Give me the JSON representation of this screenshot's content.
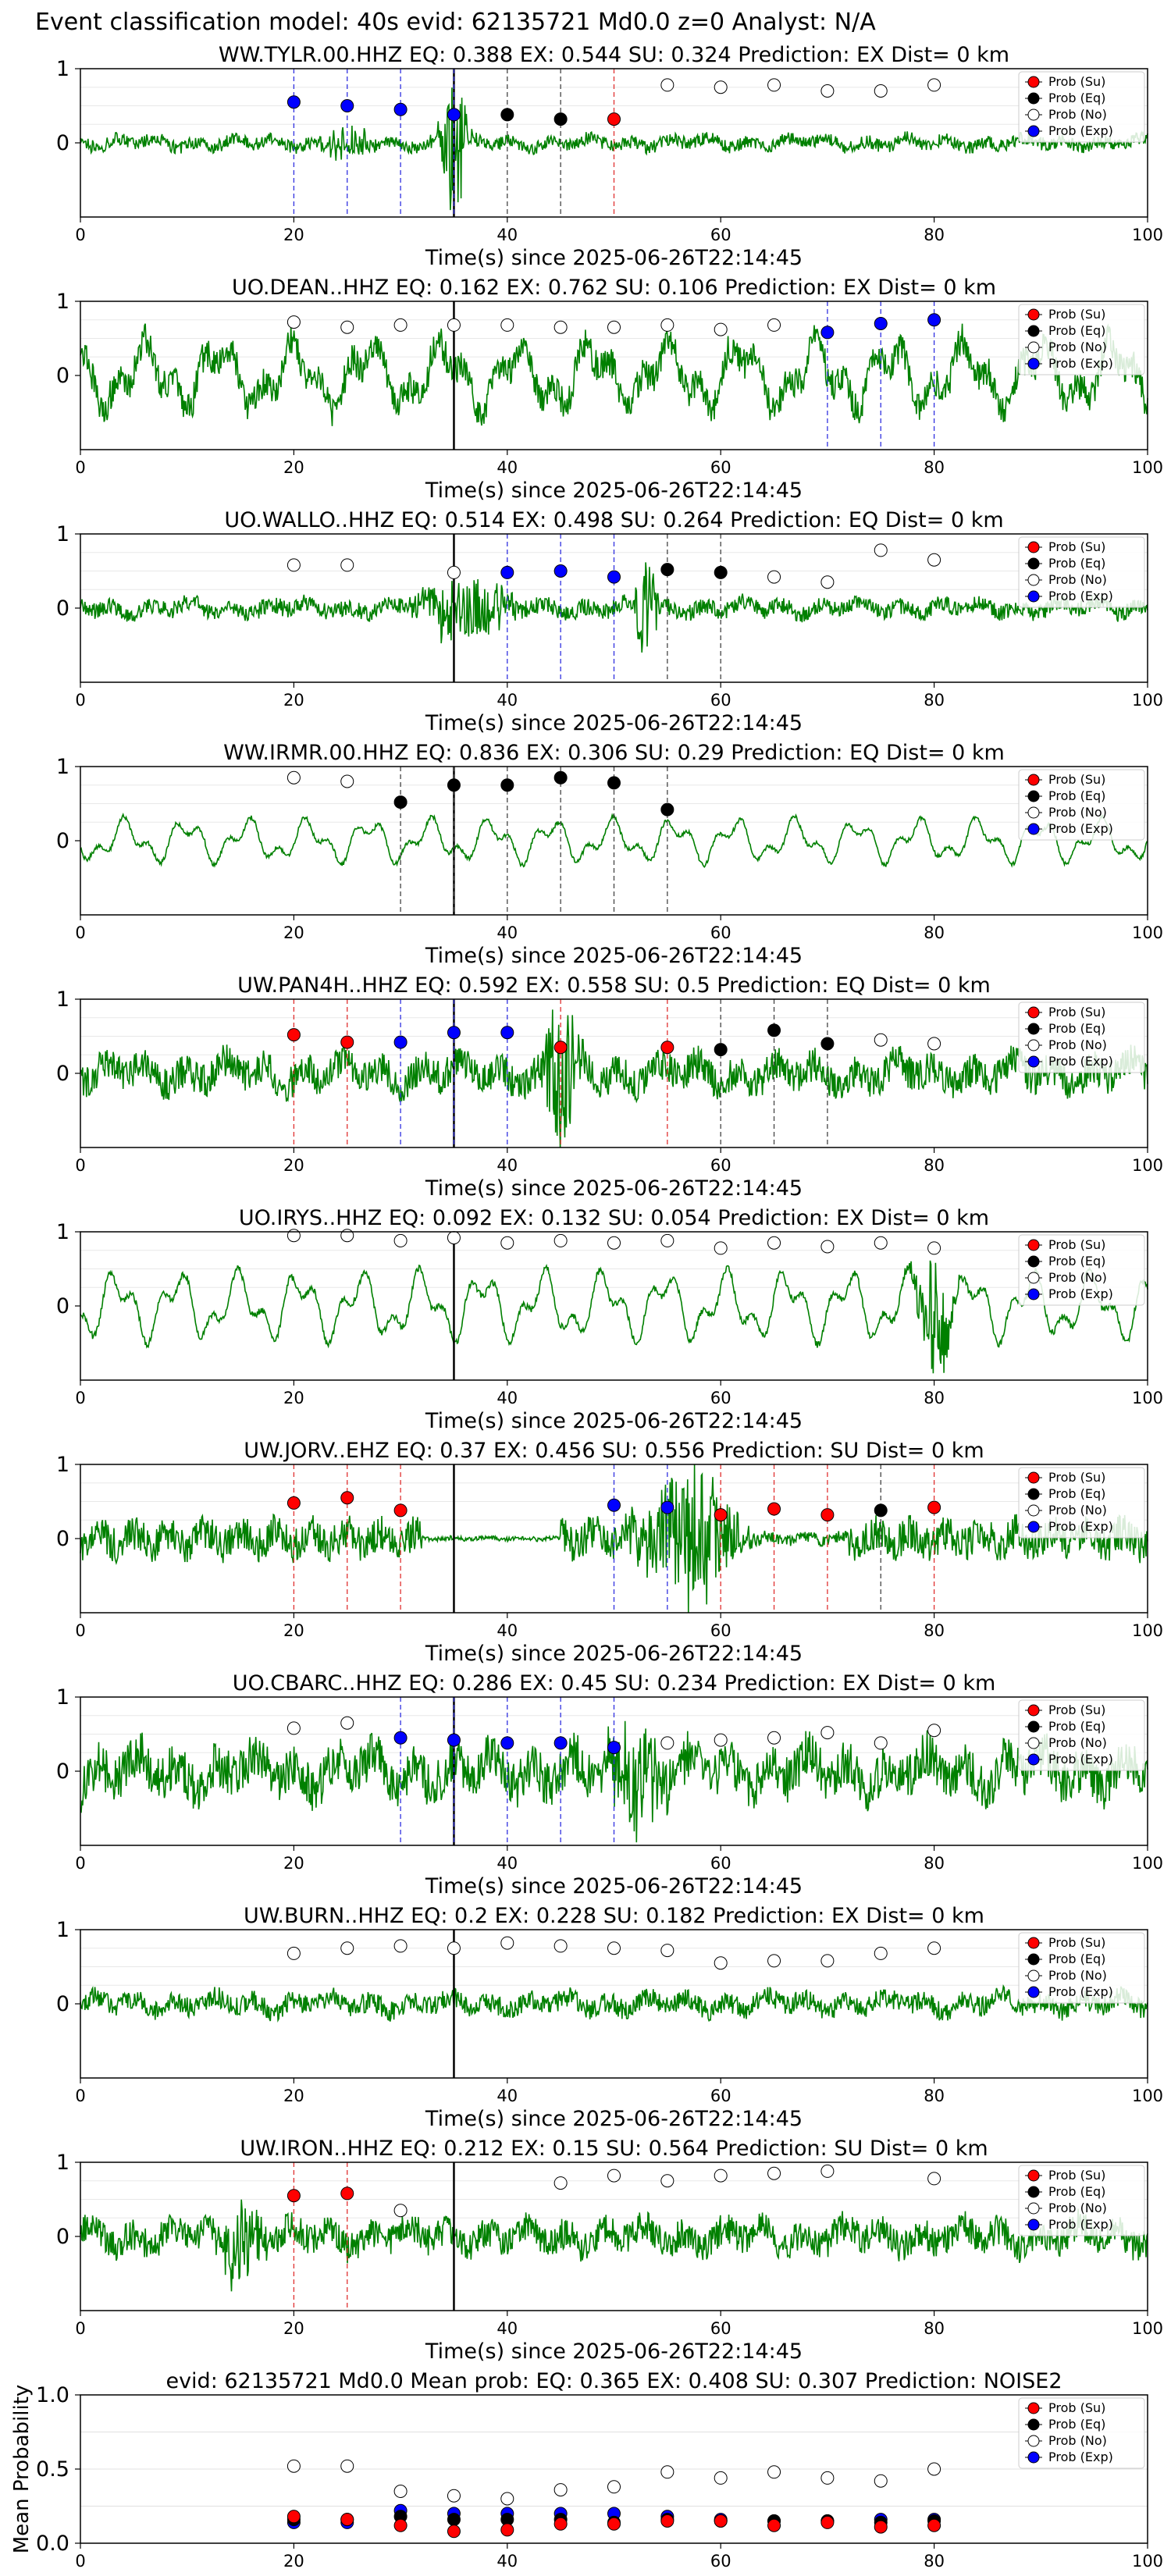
{
  "figure_title": "Event classification model: 40s evid: 62135721 Md0.0 z=0 Analyst: N/A",
  "legend_labels": [
    "Prob (Su)",
    "Prob (Eq)",
    "Prob (No)",
    "Prob (Exp)"
  ],
  "colors": {
    "trace": "#008000",
    "su": "#ff0000",
    "eq": "#000000",
    "no": "#ffffff",
    "exp": "#0000ff",
    "pick_line": "#000000"
  },
  "chart_data": [
    {
      "type": "line",
      "title": "WW.TYLR.00.HHZ   EQ: 0.388  EX: 0.544  SU: 0.324   Prediction: EX    Dist= 0 km",
      "xlabel": "Time(s) since 2025-06-26T22:14:45",
      "xlim": [
        0,
        100
      ],
      "ylim": [
        -1,
        1
      ],
      "xticks": [
        "0",
        "20",
        "40",
        "60",
        "80",
        "100"
      ],
      "yticks": [
        "0",
        "1"
      ],
      "pick_time": 35,
      "trace": {
        "style": "noisy",
        "amplitude": 0.12,
        "bursts": [
          {
            "t": 35,
            "amp": 1.0,
            "width": 1.2
          },
          {
            "t": 25,
            "amp": 0.2,
            "width": 2
          }
        ]
      },
      "windows": [
        {
          "t": 20,
          "class": "exp",
          "prob": 0.55
        },
        {
          "t": 25,
          "class": "exp",
          "prob": 0.5
        },
        {
          "t": 30,
          "class": "exp",
          "prob": 0.45
        },
        {
          "t": 35,
          "class": "exp",
          "prob": 0.38
        },
        {
          "t": 40,
          "class": "eq",
          "prob": 0.38
        },
        {
          "t": 45,
          "class": "eq",
          "prob": 0.32
        },
        {
          "t": 50,
          "class": "su",
          "prob": 0.32
        },
        {
          "t": 55,
          "class": "no",
          "prob": 0.78
        },
        {
          "t": 60,
          "class": "no",
          "prob": 0.75
        },
        {
          "t": 65,
          "class": "no",
          "prob": 0.78
        },
        {
          "t": 70,
          "class": "no",
          "prob": 0.7
        },
        {
          "t": 75,
          "class": "no",
          "prob": 0.7
        },
        {
          "t": 80,
          "class": "no",
          "prob": 0.78
        }
      ]
    },
    {
      "type": "line",
      "title": "UO.DEAN..HHZ   EQ: 0.162  EX: 0.762  SU: 0.106   Prediction: EX    Dist= 0 km",
      "xlabel": "Time(s) since 2025-06-26T22:14:45",
      "xlim": [
        0,
        100
      ],
      "ylim": [
        -1,
        1
      ],
      "xticks": [
        "0",
        "20",
        "40",
        "60",
        "80",
        "100"
      ],
      "yticks": [
        "0",
        "1"
      ],
      "pick_time": 35,
      "trace": {
        "style": "wavy",
        "amplitude": 0.6,
        "bursts": []
      },
      "windows": [
        {
          "t": 20,
          "class": "no",
          "prob": 0.72
        },
        {
          "t": 25,
          "class": "no",
          "prob": 0.65
        },
        {
          "t": 30,
          "class": "no",
          "prob": 0.68
        },
        {
          "t": 35,
          "class": "no",
          "prob": 0.68
        },
        {
          "t": 40,
          "class": "no",
          "prob": 0.68
        },
        {
          "t": 45,
          "class": "no",
          "prob": 0.65
        },
        {
          "t": 50,
          "class": "no",
          "prob": 0.65
        },
        {
          "t": 55,
          "class": "no",
          "prob": 0.68
        },
        {
          "t": 60,
          "class": "no",
          "prob": 0.62
        },
        {
          "t": 65,
          "class": "no",
          "prob": 0.68
        },
        {
          "t": 70,
          "class": "exp",
          "prob": 0.58
        },
        {
          "t": 75,
          "class": "exp",
          "prob": 0.7
        },
        {
          "t": 80,
          "class": "exp",
          "prob": 0.75
        }
      ]
    },
    {
      "type": "line",
      "title": "UO.WALLO..HHZ   EQ: 0.514  EX: 0.498  SU: 0.264   Prediction: EQ    Dist= 0 km",
      "xlabel": "Time(s) since 2025-06-26T22:14:45",
      "xlim": [
        0,
        100
      ],
      "ylim": [
        -1,
        1
      ],
      "xticks": [
        "0",
        "20",
        "40",
        "60",
        "80",
        "100"
      ],
      "yticks": [
        "0",
        "1"
      ],
      "pick_time": 35,
      "trace": {
        "style": "noisy",
        "amplitude": 0.15,
        "bursts": [
          {
            "t": 36,
            "amp": 0.45,
            "width": 4
          },
          {
            "t": 53,
            "amp": 0.7,
            "width": 1
          }
        ]
      },
      "windows": [
        {
          "t": 20,
          "class": "no",
          "prob": 0.58
        },
        {
          "t": 25,
          "class": "no",
          "prob": 0.58
        },
        {
          "t": 35,
          "class": "no",
          "prob": 0.48
        },
        {
          "t": 40,
          "class": "exp",
          "prob": 0.48
        },
        {
          "t": 45,
          "class": "exp",
          "prob": 0.5
        },
        {
          "t": 50,
          "class": "exp",
          "prob": 0.42
        },
        {
          "t": 55,
          "class": "eq",
          "prob": 0.52
        },
        {
          "t": 60,
          "class": "eq",
          "prob": 0.48
        },
        {
          "t": 65,
          "class": "no",
          "prob": 0.42
        },
        {
          "t": 70,
          "class": "no",
          "prob": 0.35
        },
        {
          "t": 75,
          "class": "no",
          "prob": 0.78
        },
        {
          "t": 80,
          "class": "no",
          "prob": 0.65
        }
      ]
    },
    {
      "type": "line",
      "title": "WW.IRMR.00.HHZ   EQ: 0.836  EX: 0.306  SU: 0.29   Prediction: EQ    Dist= 0 km",
      "xlabel": "Time(s) since 2025-06-26T22:14:45",
      "xlim": [
        0,
        100
      ],
      "ylim": [
        -1,
        1
      ],
      "xticks": [
        "0",
        "20",
        "40",
        "60",
        "80",
        "100"
      ],
      "yticks": [
        "0",
        "1"
      ],
      "pick_time": 35,
      "trace": {
        "style": "smooth",
        "amplitude": 0.35,
        "bursts": []
      },
      "windows": [
        {
          "t": 20,
          "class": "no",
          "prob": 0.85
        },
        {
          "t": 25,
          "class": "no",
          "prob": 0.8
        },
        {
          "t": 30,
          "class": "eq",
          "prob": 0.52
        },
        {
          "t": 35,
          "class": "eq",
          "prob": 0.75
        },
        {
          "t": 40,
          "class": "eq",
          "prob": 0.75
        },
        {
          "t": 45,
          "class": "eq",
          "prob": 0.85
        },
        {
          "t": 50,
          "class": "eq",
          "prob": 0.78
        },
        {
          "t": 55,
          "class": "eq",
          "prob": 0.42
        }
      ]
    },
    {
      "type": "line",
      "title": "UW.PAN4H..HHZ   EQ: 0.592  EX: 0.558  SU: 0.5   Prediction: EQ    Dist= 0 km",
      "xlabel": "Time(s) since 2025-06-26T22:14:45",
      "xlim": [
        0,
        100
      ],
      "ylim": [
        -1,
        1
      ],
      "xticks": [
        "0",
        "20",
        "40",
        "60",
        "80",
        "100"
      ],
      "yticks": [
        "0",
        "1"
      ],
      "pick_time": 35,
      "trace": {
        "style": "noisy",
        "amplitude": 0.3,
        "bursts": [
          {
            "t": 45,
            "amp": 1.0,
            "width": 1.5
          }
        ]
      },
      "windows": [
        {
          "t": 20,
          "class": "su",
          "prob": 0.52
        },
        {
          "t": 25,
          "class": "su",
          "prob": 0.42
        },
        {
          "t": 30,
          "class": "exp",
          "prob": 0.42
        },
        {
          "t": 35,
          "class": "exp",
          "prob": 0.55
        },
        {
          "t": 40,
          "class": "exp",
          "prob": 0.55
        },
        {
          "t": 45,
          "class": "su",
          "prob": 0.35
        },
        {
          "t": 55,
          "class": "su",
          "prob": 0.35
        },
        {
          "t": 60,
          "class": "eq",
          "prob": 0.32
        },
        {
          "t": 65,
          "class": "eq",
          "prob": 0.58
        },
        {
          "t": 70,
          "class": "eq",
          "prob": 0.4
        },
        {
          "t": 75,
          "class": "no",
          "prob": 0.45
        },
        {
          "t": 80,
          "class": "no",
          "prob": 0.4
        }
      ]
    },
    {
      "type": "line",
      "title": "UO.IRYS..HHZ   EQ: 0.092  EX: 0.132  SU: 0.054   Prediction: EX    Dist= 0 km",
      "xlabel": "Time(s) since 2025-06-26T22:14:45",
      "xlim": [
        0,
        100
      ],
      "ylim": [
        -1,
        1
      ],
      "xticks": [
        "0",
        "20",
        "40",
        "60",
        "80",
        "100"
      ],
      "yticks": [
        "0",
        "1"
      ],
      "pick_time": 35,
      "trace": {
        "style": "smooth",
        "amplitude": 0.55,
        "bursts": [
          {
            "t": 80,
            "amp": 0.9,
            "width": 1.5
          }
        ]
      },
      "windows": [
        {
          "t": 20,
          "class": "no",
          "prob": 0.95
        },
        {
          "t": 25,
          "class": "no",
          "prob": 0.95
        },
        {
          "t": 30,
          "class": "no",
          "prob": 0.88
        },
        {
          "t": 35,
          "class": "no",
          "prob": 0.92
        },
        {
          "t": 40,
          "class": "no",
          "prob": 0.85
        },
        {
          "t": 45,
          "class": "no",
          "prob": 0.88
        },
        {
          "t": 50,
          "class": "no",
          "prob": 0.85
        },
        {
          "t": 55,
          "class": "no",
          "prob": 0.88
        },
        {
          "t": 60,
          "class": "no",
          "prob": 0.78
        },
        {
          "t": 65,
          "class": "no",
          "prob": 0.85
        },
        {
          "t": 70,
          "class": "no",
          "prob": 0.8
        },
        {
          "t": 75,
          "class": "no",
          "prob": 0.85
        },
        {
          "t": 80,
          "class": "no",
          "prob": 0.78
        }
      ]
    },
    {
      "type": "line",
      "title": "UW.JORV..EHZ   EQ: 0.37  EX: 0.456  SU: 0.556   Prediction: SU    Dist= 0 km",
      "xlabel": "Time(s) since 2025-06-26T22:14:45",
      "xlim": [
        0,
        100
      ],
      "ylim": [
        -1,
        1
      ],
      "xticks": [
        "0",
        "20",
        "40",
        "60",
        "80",
        "100"
      ],
      "yticks": [
        "0",
        "1"
      ],
      "pick_time": 35,
      "trace": {
        "style": "burst-quiet",
        "amplitude": 0.3,
        "bursts": [
          {
            "t": 57,
            "amp": 1.0,
            "width": 4
          }
        ]
      },
      "windows": [
        {
          "t": 20,
          "class": "su",
          "prob": 0.48
        },
        {
          "t": 25,
          "class": "su",
          "prob": 0.55
        },
        {
          "t": 30,
          "class": "su",
          "prob": 0.38
        },
        {
          "t": 50,
          "class": "exp",
          "prob": 0.45
        },
        {
          "t": 55,
          "class": "exp",
          "prob": 0.42
        },
        {
          "t": 60,
          "class": "su",
          "prob": 0.32
        },
        {
          "t": 65,
          "class": "su",
          "prob": 0.4
        },
        {
          "t": 70,
          "class": "su",
          "prob": 0.32
        },
        {
          "t": 75,
          "class": "eq",
          "prob": 0.38
        },
        {
          "t": 80,
          "class": "su",
          "prob": 0.42
        }
      ]
    },
    {
      "type": "line",
      "title": "UO.CBARC..HHZ   EQ: 0.286  EX: 0.45  SU: 0.234   Prediction: EX    Dist= 0 km",
      "xlabel": "Time(s) since 2025-06-26T22:14:45",
      "xlim": [
        0,
        100
      ],
      "ylim": [
        -1,
        1
      ],
      "xticks": [
        "0",
        "20",
        "40",
        "60",
        "80",
        "100"
      ],
      "yticks": [
        "0",
        "1"
      ],
      "pick_time": 35,
      "trace": {
        "style": "noisy",
        "amplitude": 0.42,
        "bursts": [
          {
            "t": 52,
            "amp": 0.7,
            "width": 3
          }
        ]
      },
      "windows": [
        {
          "t": 20,
          "class": "no",
          "prob": 0.58
        },
        {
          "t": 25,
          "class": "no",
          "prob": 0.65
        },
        {
          "t": 30,
          "class": "exp",
          "prob": 0.45
        },
        {
          "t": 35,
          "class": "exp",
          "prob": 0.42
        },
        {
          "t": 40,
          "class": "exp",
          "prob": 0.38
        },
        {
          "t": 45,
          "class": "exp",
          "prob": 0.38
        },
        {
          "t": 50,
          "class": "exp",
          "prob": 0.32
        },
        {
          "t": 55,
          "class": "no",
          "prob": 0.38
        },
        {
          "t": 60,
          "class": "no",
          "prob": 0.42
        },
        {
          "t": 65,
          "class": "no",
          "prob": 0.45
        },
        {
          "t": 70,
          "class": "no",
          "prob": 0.52
        },
        {
          "t": 75,
          "class": "no",
          "prob": 0.38
        },
        {
          "t": 80,
          "class": "no",
          "prob": 0.55
        }
      ]
    },
    {
      "type": "line",
      "title": "UW.BURN..HHZ   EQ: 0.2  EX: 0.228  SU: 0.182   Prediction: EX    Dist= 0 km",
      "xlabel": "Time(s) since 2025-06-26T22:14:45",
      "xlim": [
        0,
        100
      ],
      "ylim": [
        -1,
        1
      ],
      "xticks": [
        "0",
        "20",
        "40",
        "60",
        "80",
        "100"
      ],
      "yticks": [
        "0",
        "1"
      ],
      "pick_time": 35,
      "trace": {
        "style": "noisy",
        "amplitude": 0.18,
        "bursts": []
      },
      "windows": [
        {
          "t": 20,
          "class": "no",
          "prob": 0.68
        },
        {
          "t": 25,
          "class": "no",
          "prob": 0.75
        },
        {
          "t": 30,
          "class": "no",
          "prob": 0.78
        },
        {
          "t": 35,
          "class": "no",
          "prob": 0.75
        },
        {
          "t": 40,
          "class": "no",
          "prob": 0.82
        },
        {
          "t": 45,
          "class": "no",
          "prob": 0.78
        },
        {
          "t": 50,
          "class": "no",
          "prob": 0.75
        },
        {
          "t": 55,
          "class": "no",
          "prob": 0.72
        },
        {
          "t": 60,
          "class": "no",
          "prob": 0.55
        },
        {
          "t": 65,
          "class": "no",
          "prob": 0.58
        },
        {
          "t": 70,
          "class": "no",
          "prob": 0.58
        },
        {
          "t": 75,
          "class": "no",
          "prob": 0.68
        },
        {
          "t": 80,
          "class": "no",
          "prob": 0.75
        }
      ]
    },
    {
      "type": "line",
      "title": "UW.IRON..HHZ   EQ: 0.212  EX: 0.15  SU: 0.564   Prediction: SU    Dist= 0 km",
      "xlabel": "Time(s) since 2025-06-26T22:14:45",
      "xlim": [
        0,
        100
      ],
      "ylim": [
        -1,
        1
      ],
      "xticks": [
        "0",
        "20",
        "40",
        "60",
        "80",
        "100"
      ],
      "yticks": [
        "0",
        "1"
      ],
      "pick_time": 35,
      "trace": {
        "style": "noisy",
        "amplitude": 0.28,
        "bursts": [
          {
            "t": 15,
            "amp": 0.6,
            "width": 2
          }
        ]
      },
      "windows": [
        {
          "t": 20,
          "class": "su",
          "prob": 0.55
        },
        {
          "t": 25,
          "class": "su",
          "prob": 0.58
        },
        {
          "t": 30,
          "class": "no",
          "prob": 0.35
        },
        {
          "t": 45,
          "class": "no",
          "prob": 0.72
        },
        {
          "t": 50,
          "class": "no",
          "prob": 0.82
        },
        {
          "t": 55,
          "class": "no",
          "prob": 0.75
        },
        {
          "t": 60,
          "class": "no",
          "prob": 0.82
        },
        {
          "t": 65,
          "class": "no",
          "prob": 0.85
        },
        {
          "t": 70,
          "class": "no",
          "prob": 0.88
        },
        {
          "t": 80,
          "class": "no",
          "prob": 0.78
        }
      ]
    },
    {
      "type": "scatter",
      "title": "evid: 62135721  Md0.0   Mean prob:   EQ: 0.365  EX: 0.408  SU: 0.307   Prediction: NOISE2",
      "xlabel": "",
      "ylabel": "Mean Probability",
      "xlim": [
        0,
        100
      ],
      "ylim": [
        0,
        1
      ],
      "xticks": [
        "0",
        "20",
        "40",
        "60",
        "80",
        "100"
      ],
      "yticks": [
        "0.0",
        "0.5",
        "1.0"
      ],
      "grid": true,
      "x": [
        20,
        25,
        30,
        35,
        40,
        45,
        50,
        55,
        60,
        65,
        70,
        75,
        80
      ],
      "series": [
        {
          "key": "no",
          "values": [
            0.52,
            0.52,
            0.35,
            0.32,
            0.3,
            0.36,
            0.38,
            0.48,
            0.44,
            0.48,
            0.44,
            0.42,
            0.5
          ]
        },
        {
          "key": "exp",
          "values": [
            0.14,
            0.14,
            0.22,
            0.2,
            0.2,
            0.2,
            0.2,
            0.18,
            0.16,
            0.15,
            0.15,
            0.16,
            0.16
          ]
        },
        {
          "key": "eq",
          "values": [
            0.16,
            0.16,
            0.18,
            0.16,
            0.16,
            0.16,
            0.14,
            0.16,
            0.15,
            0.15,
            0.15,
            0.14,
            0.15
          ]
        },
        {
          "key": "su",
          "values": [
            0.18,
            0.16,
            0.12,
            0.08,
            0.09,
            0.13,
            0.13,
            0.15,
            0.15,
            0.12,
            0.14,
            0.11,
            0.12
          ]
        }
      ]
    }
  ]
}
